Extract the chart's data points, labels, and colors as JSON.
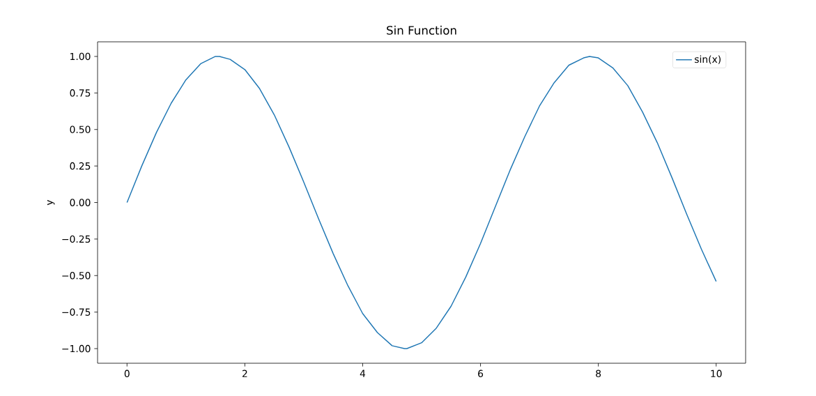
{
  "chart_data": {
    "type": "line",
    "title": "Sin Function",
    "ylabel": "y",
    "xlim": [
      -0.5,
      10.5
    ],
    "ylim": [
      -1.1,
      1.1
    ],
    "xticks": [
      0,
      2,
      4,
      6,
      8,
      10
    ],
    "yticks": [
      {
        "value": -1,
        "label": "−1.00"
      },
      {
        "value": -0.75,
        "label": "−0.75"
      },
      {
        "value": -0.5,
        "label": "−0.50"
      },
      {
        "value": -0.25,
        "label": "−0.25"
      },
      {
        "value": 0,
        "label": "0.00"
      },
      {
        "value": 0.25,
        "label": "0.25"
      },
      {
        "value": 0.5,
        "label": "0.50"
      },
      {
        "value": 0.75,
        "label": "0.75"
      },
      {
        "value": 1,
        "label": "1.00"
      }
    ],
    "legend": "top right",
    "marker": "none",
    "line_style": "solid",
    "grid": false,
    "series": [
      {
        "name": "sin(x)",
        "color": "#1f77b4",
        "x": [
          0,
          0.25,
          0.5,
          0.75,
          1,
          1.25,
          1.5,
          1.57,
          1.75,
          2,
          2.25,
          2.5,
          2.75,
          3,
          3.25,
          3.5,
          3.75,
          4,
          4.25,
          4.5,
          4.71,
          4.75,
          5,
          5.25,
          5.5,
          5.75,
          6,
          6.25,
          6.5,
          6.75,
          7,
          7.25,
          7.5,
          7.75,
          7.85,
          8,
          8.25,
          8.5,
          8.75,
          9,
          9.25,
          9.5,
          9.75,
          10
        ],
        "values": [
          0,
          0.25,
          0.48,
          0.68,
          0.84,
          0.95,
          1.0,
          1.0,
          0.98,
          0.91,
          0.78,
          0.6,
          0.38,
          0.14,
          -0.11,
          -0.35,
          -0.57,
          -0.76,
          -0.89,
          -0.98,
          -1.0,
          -1.0,
          -0.96,
          -0.86,
          -0.71,
          -0.51,
          -0.28,
          -0.03,
          0.22,
          0.45,
          0.66,
          0.82,
          0.94,
          0.99,
          1.0,
          0.99,
          0.92,
          0.8,
          0.62,
          0.41,
          0.17,
          -0.08,
          -0.32,
          -0.54
        ]
      }
    ]
  }
}
